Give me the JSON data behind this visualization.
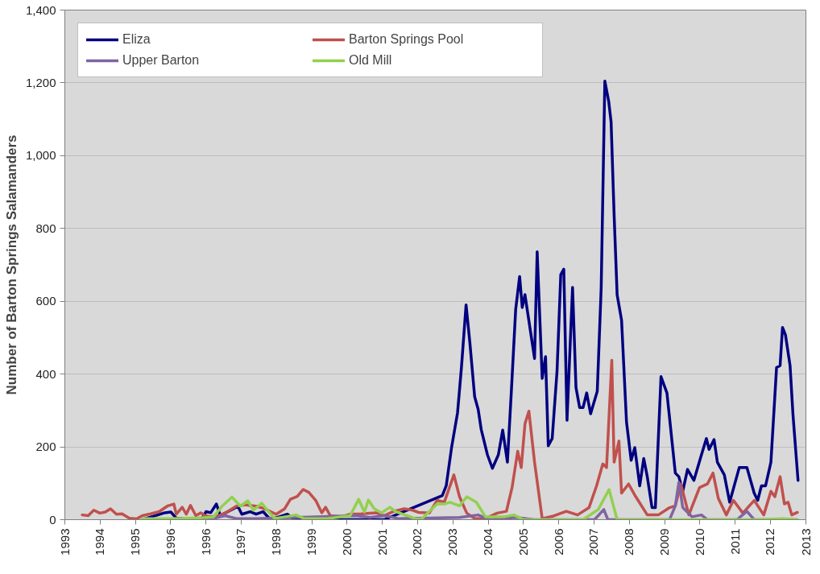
{
  "chart_data": {
    "type": "line",
    "ylabel": "Number of Barton Springs Salamanders",
    "xlim": [
      "1993-02-24",
      "2013-04-09"
    ],
    "xticks": [
      {
        "value": "1993-02-24",
        "label": "1993"
      },
      {
        "value": "1994-02-09",
        "label": "1994"
      },
      {
        "value": "1995-01-26",
        "label": "1995"
      },
      {
        "value": "1996-01-08",
        "label": "1996"
      },
      {
        "value": "1996-12-24",
        "label": "1996"
      },
      {
        "value": "1997-12-09",
        "label": "1997"
      },
      {
        "value": "1998-11-25",
        "label": "1998"
      },
      {
        "value": "1999-11-10",
        "label": "1999"
      },
      {
        "value": "2000-10-22",
        "label": "2000"
      },
      {
        "value": "2001-10-08",
        "label": "2001"
      },
      {
        "value": "2002-09-23",
        "label": "2002"
      },
      {
        "value": "2003-09-09",
        "label": "2003"
      },
      {
        "value": "2004-08-24",
        "label": "2004"
      },
      {
        "value": "2005-08-07",
        "label": "2005"
      },
      {
        "value": "2006-07-23",
        "label": "2006"
      },
      {
        "value": "2007-07-09",
        "label": "2007"
      },
      {
        "value": "2008-06-23",
        "label": "2008"
      },
      {
        "value": "2009-06-10",
        "label": "2009"
      },
      {
        "value": "2010-05-22",
        "label": "2010"
      },
      {
        "value": "2011-05-08",
        "label": "2011"
      },
      {
        "value": "2012-04-22",
        "label": "2012"
      },
      {
        "value": "2013-04-09",
        "label": "2013"
      }
    ],
    "ylim": [
      0,
      1400
    ],
    "yticks": [
      0,
      200,
      400,
      600,
      800,
      {
        "value": 1000,
        "label": "1,000"
      },
      {
        "value": 1200,
        "label": "1,200"
      },
      {
        "value": 1400,
        "label": "1,400"
      }
    ],
    "grid": "y",
    "legend": "top left",
    "marker": "none",
    "line_style": "solid",
    "series": [
      {
        "name": "Eliza",
        "color": "#000080",
        "x": [
          "1995-04-04",
          "1995-11-13",
          "1996-01-11",
          "1996-03-05",
          "1996-11-16",
          "1996-12-25",
          "1997-02-10",
          "1997-04-07",
          "1997-05-16",
          "1997-09-22",
          "1997-11-06",
          "1997-12-15",
          "1998-03-08",
          "1998-05-06",
          "1998-07-14",
          "1998-09-25",
          "1999-03-12",
          "1999-05-23",
          "2000-09-02",
          "2001-10-27",
          "2003-05-26",
          "2003-07-04",
          "2003-08-26",
          "2003-10-24",
          "2003-12-02",
          "2004-01-17",
          "2004-02-23",
          "2004-04-11",
          "2004-05-16",
          "2004-06-15",
          "2004-08-16",
          "2004-10-04",
          "2004-12-02",
          "2005-01-14",
          "2005-03-02",
          "2005-04-11",
          "2005-05-23",
          "2005-07-01",
          "2005-07-27",
          "2005-08-23",
          "2005-11-26",
          "2005-12-22",
          "2006-02-10",
          "2006-03-15",
          "2006-04-11",
          "2006-05-20",
          "2006-07-07",
          "2006-08-13",
          "2006-09-12",
          "2006-10-14",
          "2006-12-08",
          "2007-01-11",
          "2007-02-16",
          "2007-03-22",
          "2007-04-27",
          "2007-06-05",
          "2007-08-10",
          "2007-09-18",
          "2007-10-24",
          "2007-12-02",
          "2007-12-25",
          "2008-01-24",
          "2008-02-23",
          "2008-04-07",
          "2008-05-26",
          "2008-07-11",
          "2008-08-16",
          "2008-10-04",
          "2008-11-13",
          "2008-12-18",
          "2009-02-03",
          "2009-03-08",
          "2009-05-03",
          "2009-07-01",
          "2009-09-22",
          "2009-10-27",
          "2009-12-05",
          "2010-01-21",
          "2010-03-25",
          "2010-06-08",
          "2010-07-27",
          "2010-08-23",
          "2010-10-11",
          "2010-11-13",
          "2011-01-21",
          "2011-03-15",
          "2011-06-18",
          "2011-09-02",
          "2011-11-13",
          "2011-12-18",
          "2012-01-24",
          "2012-03-05",
          "2012-04-27",
          "2012-06-22",
          "2012-07-27",
          "2012-08-20",
          "2012-09-18",
          "2012-11-03",
          "2012-12-02",
          "2013-01-21"
        ],
        "values": [
          0,
          19,
          21,
          4,
          4,
          22,
          19,
          43,
          11,
          30,
          37,
          15,
          22,
          15,
          22,
          0,
          15,
          0,
          0,
          0,
          66,
          93,
          198,
          293,
          418,
          590,
          488,
          338,
          303,
          248,
          178,
          141,
          178,
          246,
          158,
          358,
          578,
          668,
          583,
          618,
          443,
          736,
          388,
          448,
          203,
          223,
          408,
          673,
          688,
          273,
          638,
          363,
          308,
          308,
          348,
          291,
          353,
          638,
          1205,
          1148,
          1093,
          838,
          618,
          548,
          268,
          163,
          198,
          93,
          168,
          118,
          33,
          33,
          393,
          348,
          128,
          118,
          78,
          138,
          108,
          178,
          223,
          193,
          220,
          158,
          123,
          48,
          143,
          143,
          73,
          53,
          93,
          93,
          158,
          418,
          423,
          528,
          508,
          423,
          288,
          108
        ]
      },
      {
        "name": "Barton Springs Pool",
        "color": "#c0504d",
        "x": [
          "1993-08-16",
          "1993-10-14",
          "1993-12-08",
          "1994-02-06",
          "1994-04-01",
          "1994-05-23",
          "1994-07-21",
          "1994-09-15",
          "1994-11-26",
          "1995-02-06",
          "1995-04-04",
          "1995-06-25",
          "1995-09-18",
          "1995-12-12",
          "1996-02-10",
          "1996-03-05",
          "1996-05-03",
          "1996-06-12",
          "1996-07-24",
          "1996-09-15",
          "1996-11-03",
          "1996-12-15",
          "1997-02-10",
          "1997-05-03",
          "1997-07-27",
          "1997-10-21",
          "1998-01-14",
          "1998-05-06",
          "1998-07-27",
          "1998-11-20",
          "1999-02-13",
          "1999-04-11",
          "1999-06-18",
          "1999-08-16",
          "1999-10-11",
          "1999-12-18",
          "2000-02-16",
          "2000-03-25",
          "2000-05-10",
          "2000-09-02",
          "2000-11-23",
          "2001-03-15",
          "2001-08-06",
          "2001-10-27",
          "2002-01-21",
          "2002-05-13",
          "2002-08-06",
          "2002-10-01",
          "2003-01-17",
          "2003-04-04",
          "2003-06-15",
          "2003-09-18",
          "2003-11-13",
          "2004-01-24",
          "2004-04-11",
          "2004-07-27",
          "2004-11-20",
          "2005-02-20",
          "2005-04-17",
          "2005-06-12",
          "2005-07-17",
          "2005-08-23",
          "2005-10-01",
          "2005-11-26",
          "2006-02-10",
          "2006-06-02",
          "2006-10-07",
          "2007-01-27",
          "2007-05-20",
          "2007-08-03",
          "2007-10-04",
          "2007-11-10",
          "2008-01-01",
          "2008-01-24",
          "2008-03-12",
          "2008-04-07",
          "2008-06-15",
          "2008-08-26",
          "2008-12-18",
          "2009-04-07",
          "2009-07-27",
          "2009-09-22",
          "2009-11-16",
          "2010-02-03",
          "2010-05-20",
          "2010-08-06",
          "2010-10-01",
          "2010-11-23",
          "2011-02-10",
          "2011-04-21",
          "2011-07-24",
          "2011-11-13",
          "2012-02-16",
          "2012-04-27",
          "2012-06-05",
          "2012-07-27",
          "2012-09-08",
          "2012-10-14",
          "2012-11-20",
          "2013-01-14"
        ],
        "values": [
          13,
          11,
          26,
          18,
          21,
          30,
          15,
          16,
          4,
          2,
          11,
          16,
          22,
          38,
          43,
          15,
          34,
          15,
          39,
          11,
          19,
          11,
          8,
          11,
          22,
          37,
          41,
          37,
          30,
          15,
          30,
          56,
          64,
          83,
          75,
          53,
          19,
          34,
          11,
          8,
          15,
          16,
          19,
          11,
          22,
          30,
          26,
          20,
          18,
          53,
          48,
          123,
          63,
          18,
          3,
          3,
          18,
          23,
          88,
          188,
          143,
          263,
          298,
          158,
          3,
          10,
          23,
          13,
          33,
          93,
          153,
          143,
          438,
          158,
          216,
          73,
          98,
          63,
          13,
          13,
          33,
          38,
          98,
          13,
          88,
          98,
          128,
          58,
          13,
          53,
          18,
          53,
          13,
          78,
          63,
          118,
          43,
          48,
          13,
          20
        ]
      },
      {
        "name": "Upper Barton",
        "color": "#8064a2",
        "x": [
          "1996-07-01",
          "1997-03-08",
          "1997-07-01",
          "1997-10-21",
          "1998-05-06",
          "2001-01-21",
          "2001-06-08",
          "2001-10-27",
          "2002-03-18",
          "2003-11-13",
          "2004-05-16",
          "2004-09-05",
          "2005-05-23",
          "2005-11-26",
          "2007-07-14",
          "2007-10-14",
          "2007-11-23",
          "2009-07-27",
          "2009-09-22",
          "2009-10-27",
          "2009-12-05",
          "2010-03-08",
          "2010-06-08",
          "2010-08-06",
          "2011-05-26",
          "2011-09-02",
          "2011-11-13",
          "2013-01-14"
        ],
        "values": [
          0,
          3,
          11,
          3,
          3,
          11,
          6,
          11,
          3,
          6,
          13,
          0,
          6,
          0,
          0,
          28,
          0,
          0,
          38,
          103,
          33,
          8,
          13,
          0,
          0,
          23,
          0,
          0
        ]
      },
      {
        "name": "Old Mill",
        "color": "#92d050",
        "x": [
          "1995-04-04",
          "1996-01-11",
          "1996-10-17",
          "1997-03-08",
          "1997-06-02",
          "1997-09-08",
          "1997-12-02",
          "1998-02-13",
          "1998-04-07",
          "1998-07-01",
          "1998-08-26",
          "1998-11-06",
          "1999-06-05",
          "1999-08-23",
          "2000-04-11",
          "2000-11-23",
          "2001-02-16",
          "2001-04-14",
          "2001-05-23",
          "2001-07-21",
          "2001-10-01",
          "2001-12-22",
          "2002-02-20",
          "2002-06-12",
          "2002-09-05",
          "2002-11-06",
          "2003-04-04",
          "2003-06-15",
          "2003-08-10",
          "2003-11-13",
          "2004-01-24",
          "2004-04-27",
          "2004-07-27",
          "2005-02-03",
          "2005-05-06",
          "2005-08-06",
          "2007-03-22",
          "2007-08-20",
          "2007-12-05",
          "2008-02-23",
          "2012-01-11",
          "2012-08-20",
          "2013-01-14"
        ],
        "values": [
          3,
          3,
          5,
          7,
          37,
          62,
          37,
          52,
          26,
          45,
          26,
          3,
          13,
          3,
          3,
          11,
          56,
          21,
          54,
          30,
          19,
          34,
          22,
          11,
          2,
          3,
          43,
          43,
          48,
          38,
          63,
          48,
          8,
          8,
          13,
          0,
          0,
          28,
          83,
          0,
          0,
          3,
          0
        ]
      }
    ]
  }
}
